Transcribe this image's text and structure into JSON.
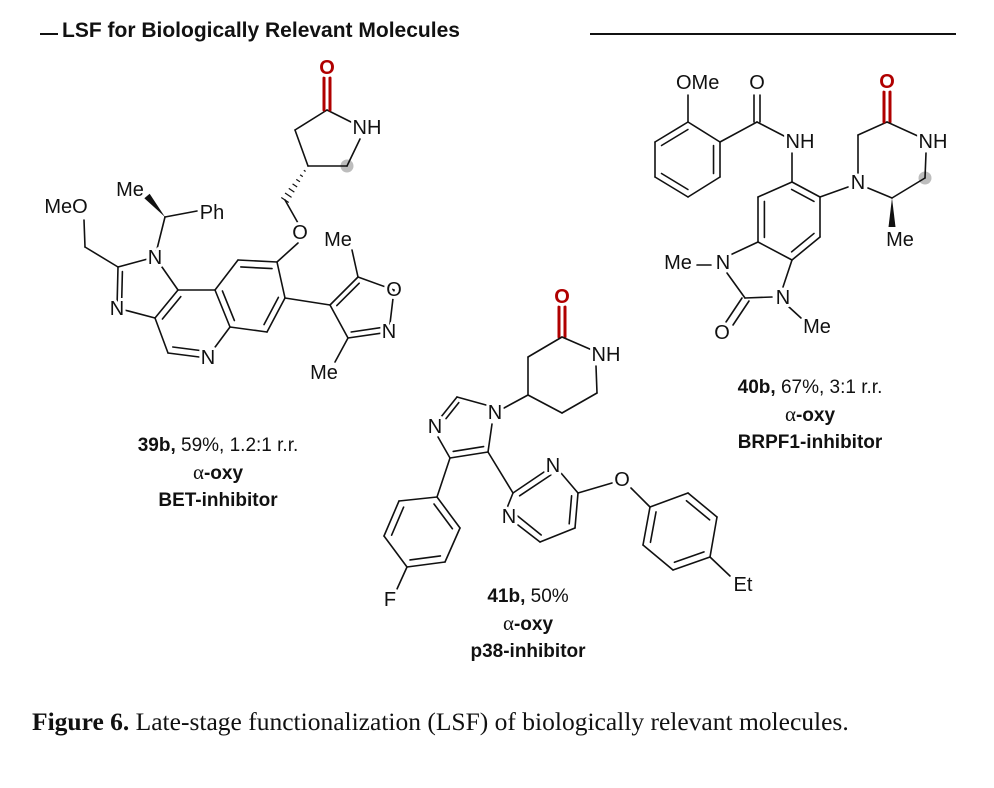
{
  "header": {
    "title": "LSF for Biologically Relevant Molecules"
  },
  "colors": {
    "oxygen_highlight": "#b00000",
    "site_marker": "#bdbdbd",
    "bond": "#111111"
  },
  "molecules": [
    {
      "id": "39b",
      "details": " 59%, 1.2:1 r.r.",
      "selectivity_symbol": "α",
      "selectivity_suffix": "-oxy",
      "target": "BET-inhibitor",
      "atom_labels": [
        "O",
        "NH",
        "O",
        "MeO",
        "N",
        "N",
        "N",
        "Me",
        "Ph",
        "Me",
        "O",
        "N",
        "Me"
      ]
    },
    {
      "id": "40b",
      "details": " 67%, 3:1 r.r.",
      "selectivity_symbol": "α",
      "selectivity_suffix": "-oxy",
      "target": "BRPF1-inhibitor",
      "atom_labels": [
        "OMe",
        "O",
        "NH",
        "O",
        "NH",
        "N",
        "Me",
        "Me",
        "N",
        "N",
        "O",
        "Me"
      ]
    },
    {
      "id": "41b",
      "details": " 50%",
      "selectivity_symbol": "α",
      "selectivity_suffix": "-oxy",
      "target": "p38-inhibitor",
      "atom_labels": [
        "O",
        "NH",
        "N",
        "N",
        "F",
        "N",
        "N",
        "O",
        "Et"
      ]
    }
  ],
  "caption": {
    "label": "Figure 6.",
    "text": " Late-stage functionalization (LSF) of biologically relevant molecules."
  }
}
